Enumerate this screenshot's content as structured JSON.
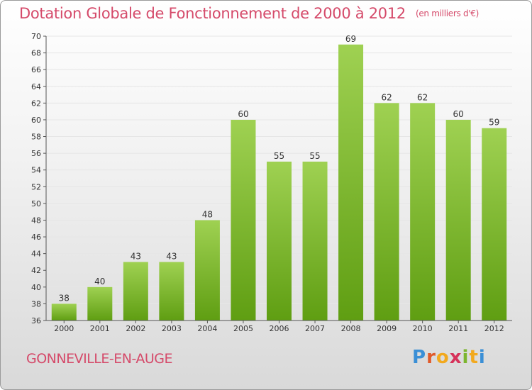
{
  "chart_data": {
    "type": "bar",
    "title": "Dotation Globale de Fonctionnement de 2000 à 2012",
    "unit_note": "(en milliers d'€)",
    "categories": [
      "2000",
      "2001",
      "2002",
      "2003",
      "2004",
      "2005",
      "2006",
      "2007",
      "2008",
      "2009",
      "2010",
      "2011",
      "2012"
    ],
    "values": [
      38,
      40,
      43,
      43,
      48,
      60,
      55,
      55,
      69,
      62,
      62,
      60,
      59
    ],
    "ylim": [
      36,
      70
    ],
    "yticks": [
      36,
      38,
      40,
      42,
      44,
      46,
      48,
      50,
      52,
      54,
      56,
      58,
      60,
      62,
      64,
      66,
      68,
      70
    ],
    "grid": true,
    "xlabel": "",
    "ylabel": ""
  },
  "footer": {
    "commune": "GONNEVILLE-EN-AUGE",
    "logo_letters": [
      "P",
      "r",
      "o",
      "x",
      "i",
      "t",
      "i"
    ],
    "logo_colors": [
      "#3a8fd6",
      "#e05a2a",
      "#f2a91e",
      "#d6325a",
      "#7cb52e",
      "#f2a91e",
      "#3a8fd6"
    ]
  },
  "colors": {
    "bar_top": "#9fd152",
    "bar_bottom": "#5f9e12",
    "title": "#d54a6a"
  }
}
